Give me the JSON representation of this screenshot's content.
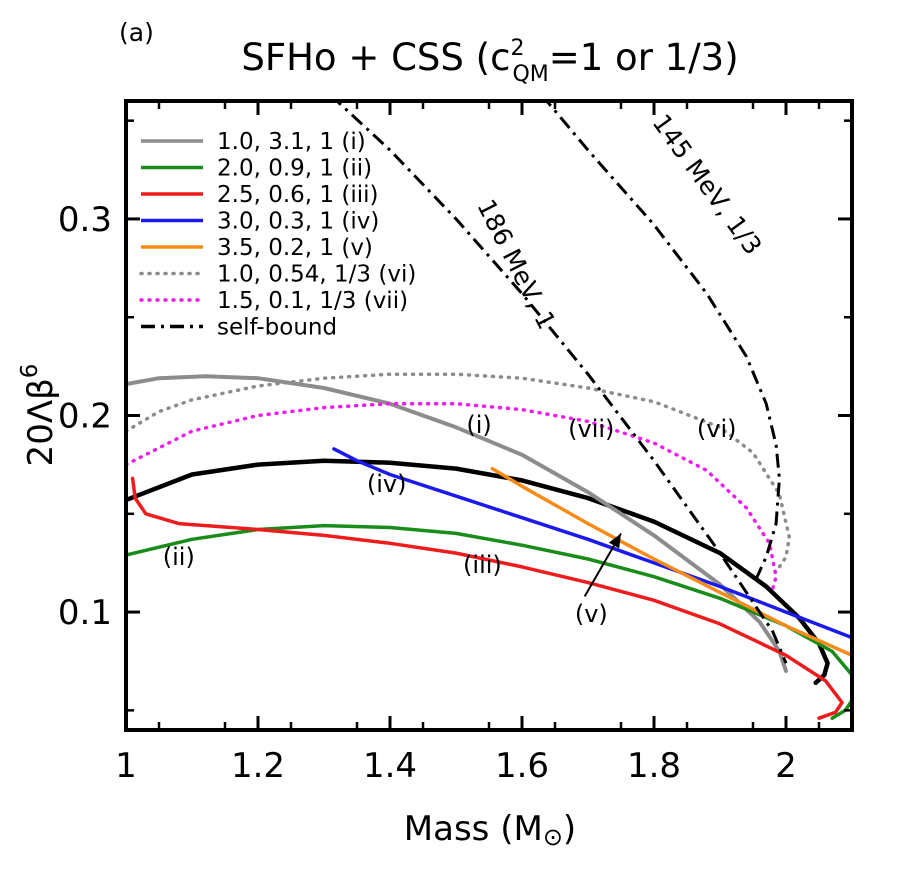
{
  "chart_data": {
    "type": "line",
    "panel_label": "(a)",
    "title": "SFHo + CSS (c",
    "title_sup": "2",
    "title_sub": "QM",
    "title_tail": "=1 or 1/3)",
    "xlabel": "Mass (M",
    "xlabel_symbol": "⊙",
    "xlabel_tail": ")",
    "ylabel": "20Λβ",
    "ylabel_sup": "6",
    "xlim": [
      1.0,
      2.1
    ],
    "ylim": [
      0.04,
      0.36
    ],
    "xticks": [
      1.0,
      1.2,
      1.4,
      1.6,
      1.8,
      2.0
    ],
    "xtick_labels": [
      "1",
      "1.2",
      "1.4",
      "1.6",
      "1.8",
      "2"
    ],
    "yticks": [
      0.1,
      0.2,
      0.3
    ],
    "ytick_labels": [
      "0.1",
      "0.2",
      "0.3"
    ],
    "grid": false,
    "legend_position": "top-left",
    "legend": [
      {
        "label": "1.0, 3.1, 1 (i)",
        "color": "#8c8c8c",
        "style": "solid"
      },
      {
        "label": "2.0, 0.9, 1 (ii)",
        "color": "#1a8c1a",
        "style": "solid"
      },
      {
        "label": "2.5, 0.6, 1 (iii)",
        "color": "#ee1c1c",
        "style": "solid"
      },
      {
        "label": "3.0, 0.3, 1 (iv)",
        "color": "#1a1aee",
        "style": "solid"
      },
      {
        "label": "3.5, 0.2, 1 (v)",
        "color": "#f58c1a",
        "style": "solid"
      },
      {
        "label": "1.0, 0.54, 1/3 (vi)",
        "color": "#8c8c8c",
        "style": "dotted"
      },
      {
        "label": "1.5, 0.1, 1/3 (vii)",
        "color": "#ee1cee",
        "style": "dotted"
      },
      {
        "label": "self-bound",
        "color": "#000000",
        "style": "dashdot"
      }
    ],
    "series": [
      {
        "color": "#000000",
        "style": "solid",
        "width": 4.5,
        "points": [
          [
            1.0,
            0.157
          ],
          [
            1.1,
            0.17
          ],
          [
            1.2,
            0.175
          ],
          [
            1.3,
            0.177
          ],
          [
            1.4,
            0.176
          ],
          [
            1.5,
            0.173
          ],
          [
            1.6,
            0.167
          ],
          [
            1.7,
            0.158
          ],
          [
            1.8,
            0.146
          ],
          [
            1.9,
            0.13
          ],
          [
            1.97,
            0.113
          ],
          [
            2.02,
            0.097
          ],
          [
            2.05,
            0.084
          ],
          [
            2.063,
            0.074
          ],
          [
            2.058,
            0.068
          ],
          [
            2.045,
            0.064
          ]
        ]
      },
      {
        "color": "#8c8c8c",
        "style": "solid",
        "width": 4,
        "points": [
          [
            1.0,
            0.216
          ],
          [
            1.05,
            0.219
          ],
          [
            1.12,
            0.22
          ],
          [
            1.2,
            0.219
          ],
          [
            1.3,
            0.214
          ],
          [
            1.4,
            0.206
          ],
          [
            1.5,
            0.194
          ],
          [
            1.6,
            0.18
          ],
          [
            1.7,
            0.161
          ],
          [
            1.8,
            0.139
          ],
          [
            1.9,
            0.114
          ],
          [
            1.96,
            0.095
          ],
          [
            1.99,
            0.08
          ],
          [
            2.0,
            0.07
          ]
        ]
      },
      {
        "color": "#1a8c1a",
        "style": "solid",
        "width": 3.5,
        "points": [
          [
            1.0,
            0.129
          ],
          [
            1.1,
            0.137
          ],
          [
            1.2,
            0.142
          ],
          [
            1.3,
            0.144
          ],
          [
            1.4,
            0.143
          ],
          [
            1.5,
            0.14
          ],
          [
            1.6,
            0.134
          ],
          [
            1.7,
            0.127
          ],
          [
            1.8,
            0.118
          ],
          [
            1.9,
            0.107
          ],
          [
            2.0,
            0.093
          ],
          [
            2.07,
            0.08
          ],
          [
            2.1,
            0.068
          ],
          [
            2.1,
            0.055
          ],
          [
            2.09,
            0.05
          ],
          [
            2.07,
            0.046
          ]
        ]
      },
      {
        "color": "#ee1c1c",
        "style": "solid",
        "width": 3.5,
        "points": [
          [
            1.01,
            0.168
          ],
          [
            1.014,
            0.158
          ],
          [
            1.03,
            0.15
          ],
          [
            1.08,
            0.145
          ],
          [
            1.2,
            0.142
          ],
          [
            1.3,
            0.139
          ],
          [
            1.4,
            0.135
          ],
          [
            1.5,
            0.13
          ],
          [
            1.6,
            0.123
          ],
          [
            1.7,
            0.115
          ],
          [
            1.8,
            0.106
          ],
          [
            1.9,
            0.094
          ],
          [
            2.0,
            0.078
          ],
          [
            2.06,
            0.065
          ],
          [
            2.085,
            0.054
          ],
          [
            2.075,
            0.049
          ],
          [
            2.05,
            0.046
          ]
        ]
      },
      {
        "color": "#1a1aee",
        "style": "solid",
        "width": 3.5,
        "points": [
          [
            1.315,
            0.183
          ],
          [
            1.35,
            0.177
          ],
          [
            1.4,
            0.17
          ],
          [
            1.5,
            0.159
          ],
          [
            1.6,
            0.148
          ],
          [
            1.7,
            0.137
          ],
          [
            1.8,
            0.125
          ],
          [
            1.9,
            0.113
          ],
          [
            2.0,
            0.1
          ],
          [
            2.1,
            0.087
          ]
        ]
      },
      {
        "color": "#f58c1a",
        "style": "solid",
        "width": 3.5,
        "points": [
          [
            1.555,
            0.173
          ],
          [
            1.6,
            0.164
          ],
          [
            1.7,
            0.145
          ],
          [
            1.8,
            0.127
          ],
          [
            1.9,
            0.11
          ],
          [
            2.0,
            0.093
          ],
          [
            2.1,
            0.078
          ]
        ]
      },
      {
        "color": "#8c8c8c",
        "style": "dotted",
        "width": 3.5,
        "points": [
          [
            1.0,
            0.192
          ],
          [
            1.05,
            0.202
          ],
          [
            1.1,
            0.208
          ],
          [
            1.2,
            0.215
          ],
          [
            1.3,
            0.219
          ],
          [
            1.4,
            0.221
          ],
          [
            1.5,
            0.221
          ],
          [
            1.6,
            0.219
          ],
          [
            1.7,
            0.214
          ],
          [
            1.8,
            0.207
          ],
          [
            1.9,
            0.194
          ],
          [
            1.95,
            0.181
          ],
          [
            1.99,
            0.16
          ],
          [
            2.005,
            0.138
          ],
          [
            2.0,
            0.128
          ],
          [
            1.99,
            0.123
          ]
        ]
      },
      {
        "color": "#ee1cee",
        "style": "dotted",
        "width": 3.5,
        "points": [
          [
            1.0,
            0.175
          ],
          [
            1.1,
            0.192
          ],
          [
            1.2,
            0.2
          ],
          [
            1.3,
            0.204
          ],
          [
            1.4,
            0.206
          ],
          [
            1.5,
            0.206
          ],
          [
            1.6,
            0.203
          ],
          [
            1.7,
            0.197
          ],
          [
            1.8,
            0.186
          ],
          [
            1.88,
            0.172
          ],
          [
            1.94,
            0.153
          ],
          [
            1.975,
            0.135
          ],
          [
            1.985,
            0.118
          ],
          [
            1.98,
            0.112
          ]
        ]
      },
      {
        "color": "#000000",
        "style": "dashdot",
        "width": 3,
        "points": [
          [
            1.31,
            0.363
          ],
          [
            1.4,
            0.335
          ],
          [
            1.5,
            0.3
          ],
          [
            1.6,
            0.262
          ],
          [
            1.7,
            0.221
          ],
          [
            1.8,
            0.177
          ],
          [
            1.9,
            0.13
          ],
          [
            1.96,
            0.1
          ],
          [
            1.98,
            0.09
          ],
          [
            2.0,
            0.074
          ]
        ]
      },
      {
        "color": "#000000",
        "style": "dashdot",
        "width": 3,
        "points": [
          [
            1.63,
            0.363
          ],
          [
            1.7,
            0.335
          ],
          [
            1.8,
            0.297
          ],
          [
            1.88,
            0.262
          ],
          [
            1.94,
            0.23
          ],
          [
            1.97,
            0.206
          ],
          [
            1.985,
            0.185
          ],
          [
            1.99,
            0.168
          ],
          [
            1.985,
            0.145
          ],
          [
            1.97,
            0.128
          ],
          [
            1.955,
            0.117
          ]
        ]
      }
    ],
    "annotations": [
      {
        "text": "(i)",
        "x": 1.535,
        "y": 0.191
      },
      {
        "text": "(ii)",
        "x": 1.08,
        "y": 0.124
      },
      {
        "text": "(iii)",
        "x": 1.54,
        "y": 0.12
      },
      {
        "text": "(iv)",
        "x": 1.395,
        "y": 0.161
      },
      {
        "text": "(v)",
        "x": 1.705,
        "y": 0.095
      },
      {
        "text": "(vi)",
        "x": 1.895,
        "y": 0.189
      },
      {
        "text": "(vii)",
        "x": 1.705,
        "y": 0.189
      }
    ],
    "arrow": {
      "from": [
        1.695,
        0.108
      ],
      "to": [
        1.75,
        0.14
      ]
    },
    "self_bound_labels": [
      {
        "text": "186 MeV, 1",
        "x": 1.58,
        "y": 0.275,
        "angle": 63
      },
      {
        "text": "145 MeV, 1/3",
        "x": 1.87,
        "y": 0.315,
        "angle": 54
      }
    ]
  }
}
